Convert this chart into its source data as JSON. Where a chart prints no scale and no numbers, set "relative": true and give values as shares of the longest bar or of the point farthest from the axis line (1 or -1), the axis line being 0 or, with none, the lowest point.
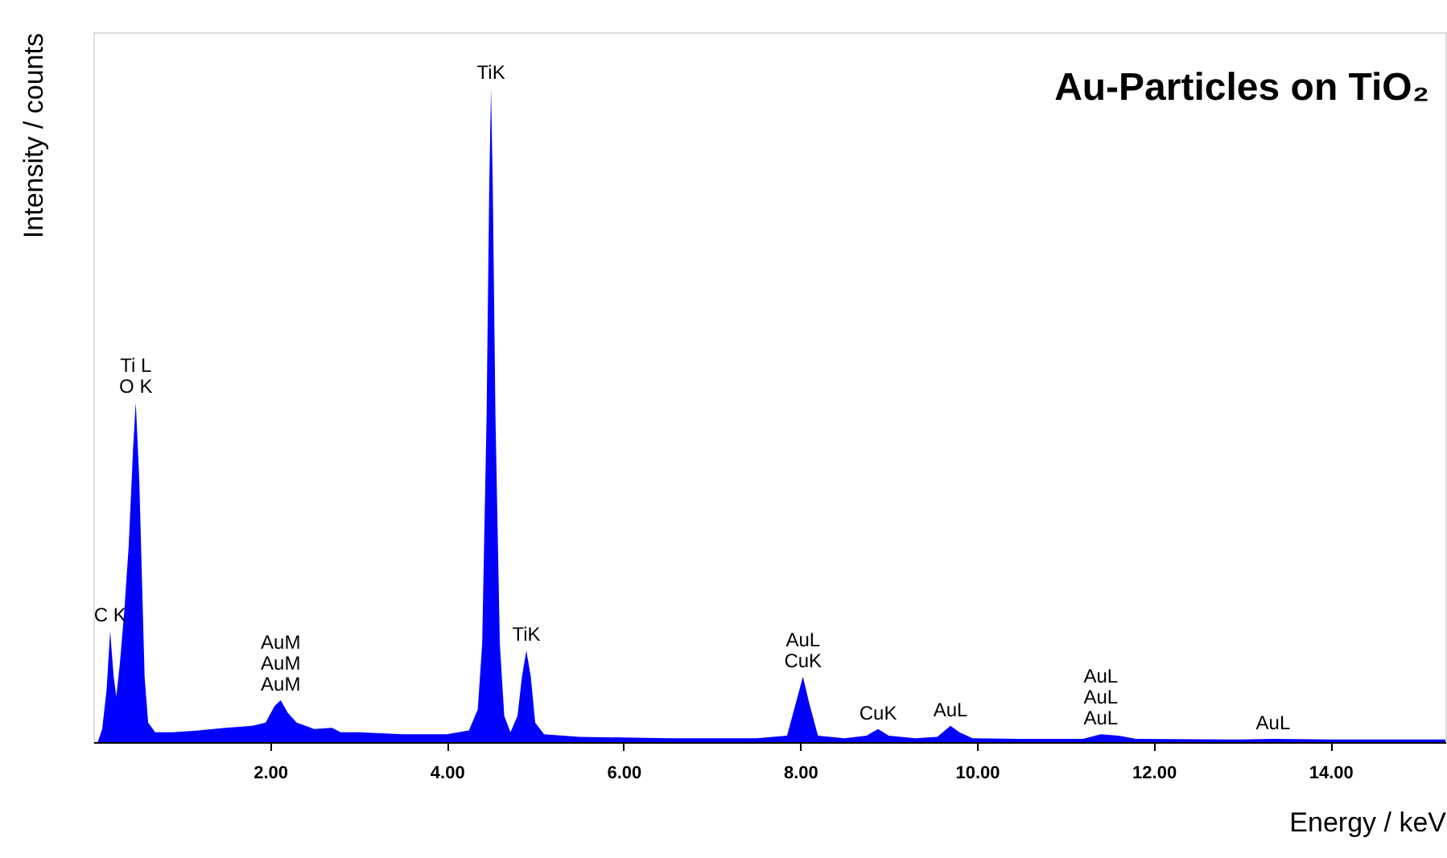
{
  "chart_data": {
    "type": "area",
    "title": "Au-Particles on TiO₂",
    "xlabel": "Energy / keV",
    "ylabel": "Intensity / counts",
    "relative": true,
    "grid": false,
    "xlim": [
      0,
      15.3
    ],
    "xticks": [
      {
        "value": 2,
        "label": "2.00"
      },
      {
        "value": 4,
        "label": "4.00"
      },
      {
        "value": 6,
        "label": "6.00"
      },
      {
        "value": 8,
        "label": "8.00"
      },
      {
        "value": 10,
        "label": "10.00"
      },
      {
        "value": 12,
        "label": "12.00"
      },
      {
        "value": 14,
        "label": "14.00"
      }
    ],
    "x": [
      0.05,
      0.1,
      0.15,
      0.19,
      0.23,
      0.26,
      0.3,
      0.35,
      0.4,
      0.45,
      0.48,
      0.52,
      0.55,
      0.58,
      0.62,
      0.7,
      0.9,
      1.2,
      1.5,
      1.8,
      1.95,
      2.05,
      2.12,
      2.2,
      2.3,
      2.5,
      2.7,
      2.8,
      3.0,
      3.5,
      4.0,
      4.25,
      4.35,
      4.4,
      4.45,
      4.48,
      4.5,
      4.52,
      4.55,
      4.6,
      4.65,
      4.72,
      4.8,
      4.85,
      4.9,
      4.95,
      5.0,
      5.1,
      5.5,
      6.0,
      6.5,
      7.0,
      7.5,
      7.85,
      7.95,
      8.03,
      8.1,
      8.2,
      8.5,
      8.75,
      8.88,
      9.0,
      9.3,
      9.55,
      9.7,
      9.8,
      9.95,
      10.5,
      11.2,
      11.4,
      11.6,
      11.8,
      13.0,
      13.35,
      14.0,
      15.3
    ],
    "series": [
      {
        "color": "#0000ff",
        "values": [
          0.0,
          0.02,
          0.08,
          0.17,
          0.1,
          0.07,
          0.12,
          0.2,
          0.3,
          0.45,
          0.52,
          0.4,
          0.25,
          0.1,
          0.03,
          0.015,
          0.015,
          0.018,
          0.022,
          0.025,
          0.03,
          0.055,
          0.064,
          0.045,
          0.03,
          0.02,
          0.022,
          0.015,
          0.015,
          0.012,
          0.012,
          0.018,
          0.05,
          0.15,
          0.5,
          0.85,
          1.0,
          0.85,
          0.5,
          0.15,
          0.04,
          0.015,
          0.04,
          0.1,
          0.14,
          0.1,
          0.03,
          0.012,
          0.008,
          0.007,
          0.006,
          0.006,
          0.006,
          0.01,
          0.06,
          0.1,
          0.06,
          0.01,
          0.006,
          0.01,
          0.02,
          0.01,
          0.006,
          0.008,
          0.025,
          0.015,
          0.006,
          0.005,
          0.005,
          0.012,
          0.01,
          0.005,
          0.004,
          0.005,
          0.004,
          0.004
        ]
      }
    ],
    "annotations": [
      {
        "text": "TiK",
        "x": 4.5,
        "y": 1.0
      },
      {
        "text": "Ti L",
        "x": 0.48,
        "y": 0.52
      },
      {
        "text": "O K",
        "x": 0.48,
        "y": 0.52
      },
      {
        "text": "C K",
        "x": 0.19,
        "y": 0.17
      },
      {
        "text": "AuM",
        "x": 2.12,
        "y": 0.064
      },
      {
        "text": "AuM",
        "x": 2.12,
        "y": 0.064
      },
      {
        "text": "AuM",
        "x": 2.12,
        "y": 0.064
      },
      {
        "text": "TiK",
        "x": 4.9,
        "y": 0.14
      },
      {
        "text": "AuL",
        "x": 8.03,
        "y": 0.1
      },
      {
        "text": "CuK",
        "x": 8.03,
        "y": 0.1
      },
      {
        "text": "CuK",
        "x": 8.88,
        "y": 0.02
      },
      {
        "text": "AuL",
        "x": 9.7,
        "y": 0.025
      },
      {
        "text": "AuL",
        "x": 11.4,
        "y": 0.012
      },
      {
        "text": "AuL",
        "x": 11.4,
        "y": 0.012
      },
      {
        "text": "AuL",
        "x": 11.4,
        "y": 0.012
      },
      {
        "text": "AuL",
        "x": 13.35,
        "y": 0.005
      }
    ]
  }
}
